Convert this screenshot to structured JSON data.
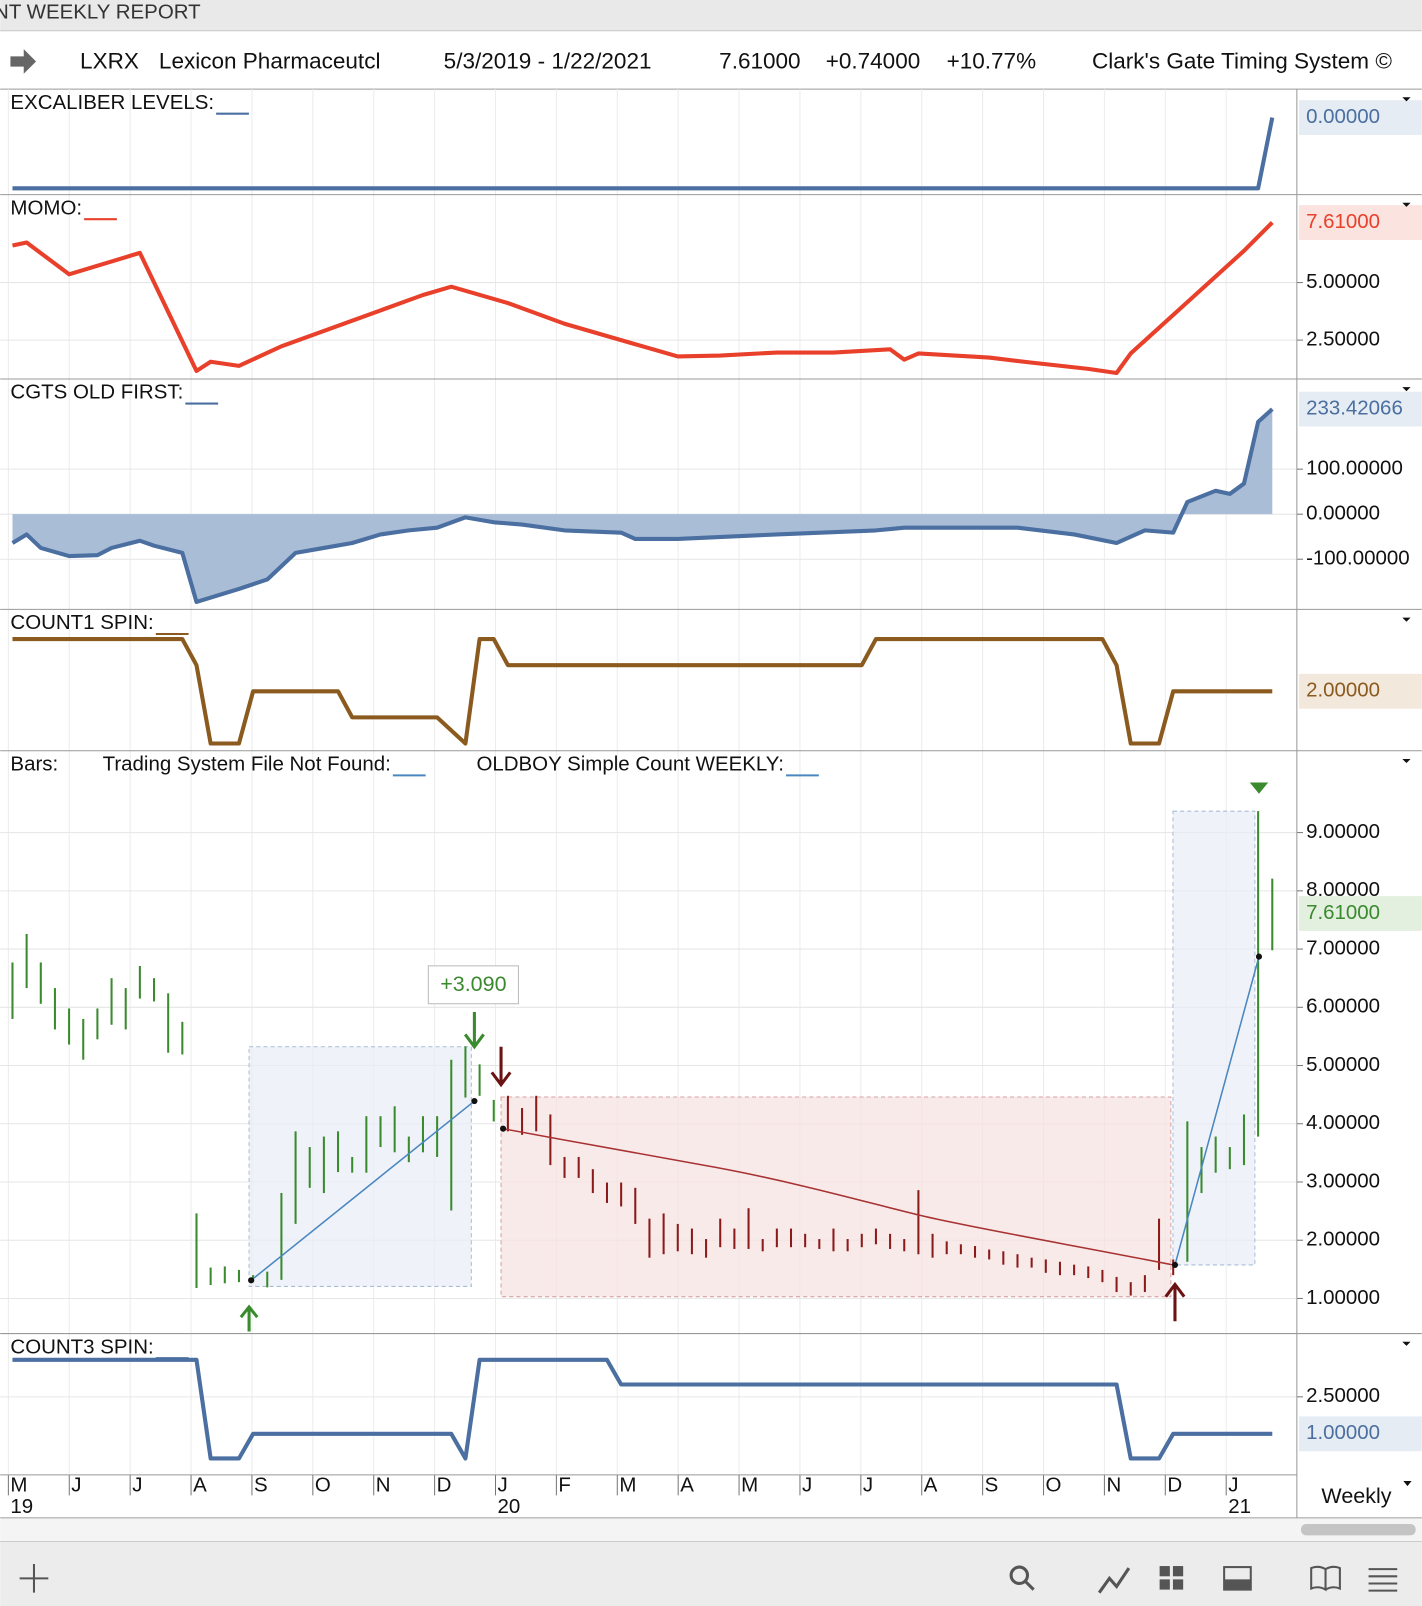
{
  "window_title": "NT WEEKLY REPORT",
  "header": {
    "symbol": "LXRX",
    "name": "Lexicon Pharmaceutcl",
    "date_range": "5/3/2019 - 1/22/2021",
    "last": "7.61000",
    "change": "+0.74000",
    "pct_change": "+10.77%",
    "system": "Clark's Gate Timing System ©"
  },
  "annotation": "+3.090",
  "timeframe": "Weekly",
  "x_axis": {
    "months": [
      "M",
      "J",
      "J",
      "A",
      "S",
      "O",
      "N",
      "D",
      "J",
      "F",
      "M",
      "A",
      "M",
      "J",
      "J",
      "A",
      "S",
      "O",
      "N",
      "D",
      "J"
    ],
    "years": [
      "19",
      null,
      null,
      null,
      null,
      null,
      null,
      null,
      "20",
      null,
      null,
      null,
      null,
      null,
      null,
      null,
      null,
      null,
      null,
      null,
      "21"
    ]
  },
  "chart_data": [
    {
      "type": "line",
      "labels": [
        "EXCALIBER LEVELS:"
      ],
      "xlim": [
        0,
        89
      ],
      "ylim": [
        -1.06,
        0.33
      ],
      "yticks": [],
      "last_value": {
        "value": 0,
        "label": "0.00000"
      },
      "series": [
        {
          "color": "#4a6fa0",
          "x": [
            0,
            88,
            89
          ],
          "values": [
            -1,
            -1,
            0
          ]
        }
      ]
    },
    {
      "type": "line",
      "labels": [
        "MOMO:"
      ],
      "xlim": [
        0,
        89
      ],
      "ylim": [
        0.9,
        8.6
      ],
      "yticks": [
        {
          "value": 2.5,
          "label": "2.50000"
        },
        {
          "value": 5,
          "label": "5.00000"
        }
      ],
      "last_value": {
        "value": 7.61,
        "label": "7.61000"
      },
      "series": [
        {
          "color": "#e8402a",
          "x": [
            0,
            1,
            4,
            9,
            13,
            14,
            16,
            19,
            22,
            26,
            29,
            31,
            35,
            39,
            44,
            47,
            50,
            54,
            58,
            62,
            63,
            64,
            69,
            72,
            76,
            78,
            79,
            83,
            87,
            89
          ],
          "values": [
            6.61,
            6.74,
            5.36,
            6.29,
            1.16,
            1.56,
            1.38,
            2.23,
            2.9,
            3.79,
            4.46,
            4.82,
            4.11,
            3.21,
            2.32,
            1.79,
            1.83,
            1.96,
            1.96,
            2.1,
            1.65,
            1.92,
            1.74,
            1.52,
            1.25,
            1.07,
            1.92,
            4.15,
            6.38,
            7.61
          ]
        }
      ]
    },
    {
      "type": "area",
      "labels": [
        "CGTS OLD FIRST:"
      ],
      "xlim": [
        0,
        89
      ],
      "ylim": [
        -207,
        289
      ],
      "yticks": [
        {
          "value": -100,
          "label": "-100.00000"
        },
        {
          "value": 0,
          "label": "0.00000"
        },
        {
          "value": 100,
          "label": "100.00000"
        }
      ],
      "last_value": {
        "value": 233.42066,
        "label": "233.42066"
      },
      "series": [
        {
          "color": "#4a6fa0",
          "fill": "#a9bdd7",
          "x": [
            0,
            1,
            2,
            4,
            6,
            7,
            9,
            10,
            12,
            13,
            16,
            18,
            20,
            22,
            24,
            26,
            28,
            30,
            32,
            34,
            36,
            39,
            43,
            44,
            47,
            54,
            61,
            63,
            71,
            75,
            78,
            80,
            82,
            83,
            85,
            86,
            87,
            88,
            89
          ],
          "values": [
            -64,
            -45,
            -75,
            -93,
            -91,
            -75,
            -59,
            -70,
            -86,
            -195,
            -166,
            -145,
            -86,
            -75,
            -64,
            -45,
            -36,
            -30,
            -7,
            -18,
            -23,
            -36,
            -41,
            -55,
            -55,
            -45,
            -36,
            -30,
            -30,
            -45,
            -64,
            -36,
            -41,
            27,
            52,
            45,
            68,
            205,
            233.42066
          ]
        }
      ]
    },
    {
      "type": "line",
      "labels": [
        "COUNT1 SPIN:"
      ],
      "xlim": [
        0,
        89
      ],
      "ylim": [
        -0.2,
        4.9
      ],
      "yticks": [],
      "last_value": {
        "value": 2,
        "label": "2.00000"
      },
      "series": [
        {
          "color": "#8b5a1e",
          "x": [
            0,
            12,
            13,
            14,
            16,
            17,
            23,
            24,
            30,
            32,
            33,
            34,
            35,
            60,
            61,
            77,
            78,
            79,
            81,
            82,
            89
          ],
          "values": [
            4,
            4,
            3,
            0,
            0,
            2,
            2,
            1,
            1,
            0,
            4,
            4,
            3,
            3,
            4,
            4,
            3,
            0,
            0,
            2,
            2
          ]
        }
      ]
    },
    {
      "type": "ohlc",
      "labels": [
        "Bars:",
        "Trading System File Not Found:",
        "OLDBOY Simple Count WEEKLY:"
      ],
      "xlim": [
        0,
        89
      ],
      "ylim": [
        0.45,
        10.3
      ],
      "yticks": [
        {
          "value": 1,
          "label": "1.00000"
        },
        {
          "value": 2,
          "label": "2.00000"
        },
        {
          "value": 3,
          "label": "3.00000"
        },
        {
          "value": 4,
          "label": "4.00000"
        },
        {
          "value": 5,
          "label": "5.00000"
        },
        {
          "value": 6,
          "label": "6.00000"
        },
        {
          "value": 7,
          "label": "7.00000"
        },
        {
          "value": 8,
          "label": "8.00000"
        },
        {
          "value": 9,
          "label": "9.00000"
        }
      ],
      "last_value": {
        "value": 7.61,
        "label": "7.61000"
      },
      "series": [
        {
          "color": "#3a8a2e",
          "x": [
            0,
            1,
            2,
            3,
            4,
            5,
            6,
            7,
            8,
            9,
            10,
            11,
            12,
            13,
            14,
            15,
            16,
            17,
            18,
            19,
            20,
            21,
            22,
            23,
            24,
            25,
            26,
            27,
            28,
            29,
            30,
            31,
            32,
            33,
            34
          ],
          "high": [
            6.77,
            7.26,
            6.77,
            6.33,
            5.98,
            5.8,
            5.98,
            6.5,
            6.33,
            6.71,
            6.5,
            6.24,
            5.75,
            2.46,
            1.53,
            1.55,
            1.49,
            1.4,
            1.46,
            2.81,
            3.87,
            3.6,
            3.78,
            3.87,
            3.43,
            4.13,
            4.13,
            4.3,
            3.78,
            4.13,
            4.13,
            5.1,
            5.33,
            5.02,
            4.41
          ],
          "low": [
            5.8,
            6.33,
            6.06,
            5.62,
            5.36,
            5.1,
            5.45,
            5.7,
            5.62,
            6.15,
            6.1,
            5.22,
            5.19,
            1.18,
            1.23,
            1.26,
            1.28,
            1.28,
            1.19,
            1.32,
            2.28,
            2.9,
            2.81,
            3.17,
            3.16,
            3.16,
            3.6,
            3.51,
            3.34,
            3.51,
            3.43,
            2.51,
            4.45,
            4.48,
            4.04
          ]
        },
        {
          "color": "#8b1a1a",
          "x": [
            35,
            36,
            37,
            38,
            39,
            40,
            41,
            42,
            43,
            44,
            45,
            46,
            47,
            48,
            49,
            50,
            51,
            52,
            53,
            54,
            55,
            56,
            57,
            58,
            59,
            60,
            61,
            62,
            63,
            64,
            65,
            66,
            67,
            68,
            69,
            70,
            71,
            72,
            73,
            74,
            75,
            76,
            77,
            78,
            79,
            80,
            81,
            82
          ],
          "high": [
            4.48,
            4.27,
            4.48,
            4.16,
            3.43,
            3.43,
            3.22,
            2.99,
            2.99,
            2.9,
            2.37,
            2.46,
            2.28,
            2.2,
            2.02,
            2.37,
            2.2,
            2.55,
            2.02,
            2.2,
            2.2,
            2.11,
            2.02,
            2.2,
            2.02,
            2.11,
            2.2,
            2.11,
            2.02,
            2.86,
            2.11,
            1.98,
            1.93,
            1.9,
            1.84,
            1.81,
            1.76,
            1.7,
            1.67,
            1.63,
            1.58,
            1.55,
            1.49,
            1.37,
            1.28,
            1.4,
            2.37,
            1.67
          ],
          "low": [
            3.87,
            3.81,
            3.87,
            3.29,
            3.07,
            3.07,
            2.81,
            2.64,
            2.58,
            2.28,
            1.7,
            1.76,
            1.81,
            1.76,
            1.7,
            1.88,
            1.85,
            1.85,
            1.81,
            1.88,
            1.88,
            1.88,
            1.85,
            1.81,
            1.81,
            1.88,
            1.93,
            1.85,
            1.81,
            1.76,
            1.7,
            1.76,
            1.76,
            1.7,
            1.67,
            1.58,
            1.53,
            1.53,
            1.44,
            1.4,
            1.4,
            1.35,
            1.28,
            1.11,
            1.05,
            1.11,
            1.49,
            1.4
          ]
        },
        {
          "color": "#3a8a2e",
          "x": [
            83,
            84,
            85,
            86,
            87,
            88,
            89
          ],
          "high": [
            4.04,
            3.6,
            3.78,
            3.6,
            4.16,
            9.37,
            8.21
          ],
          "low": [
            1.63,
            2.81,
            3.16,
            3.22,
            3.29,
            3.78,
            6.98
          ]
        }
      ]
    },
    {
      "type": "line",
      "labels": [
        "COUNT3 SPIN:"
      ],
      "xlim": [
        0,
        89
      ],
      "ylim": [
        -0.5,
        4.9
      ],
      "yticks": [
        {
          "value": 2.5,
          "label": "2.50000"
        }
      ],
      "last_value": {
        "value": 1,
        "label": "1.00000"
      },
      "series": [
        {
          "color": "#4a6fa0",
          "x": [
            0,
            13,
            14,
            16,
            17,
            31,
            32,
            33,
            42,
            43,
            78,
            79,
            81,
            82,
            89
          ],
          "values": [
            4,
            4,
            0,
            0,
            1,
            1,
            0,
            4,
            4,
            3,
            3,
            0,
            0,
            1,
            1
          ]
        }
      ]
    }
  ]
}
